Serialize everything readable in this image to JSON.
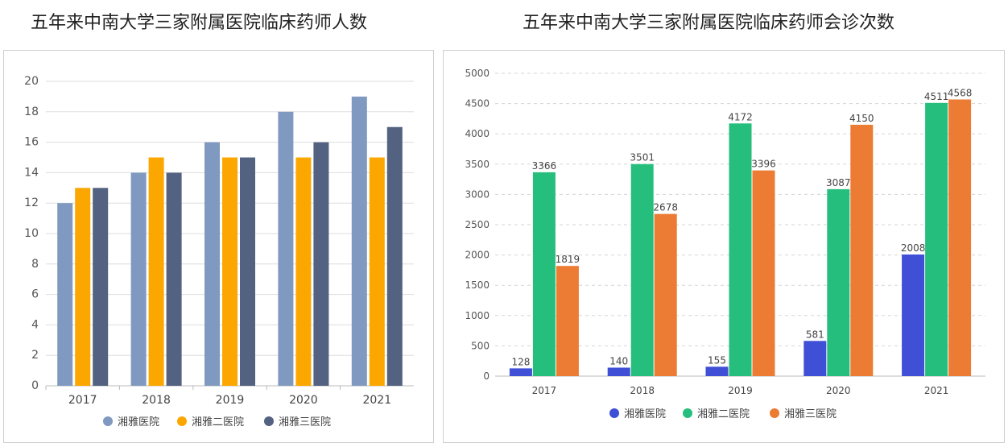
{
  "titles": {
    "left": "五年来中南大学三家附属医院临床药师人数",
    "right": "五年来中南大学三家附属医院临床药师会诊次数"
  },
  "colors": {
    "xiangya": "#7f99c0",
    "xiangya2": "#fca700",
    "xiangya3": "#536280",
    "xiangya_r": "#3f4fd6",
    "xiangya2_r": "#26be7d",
    "xiangya3_r": "#ec7b33"
  },
  "chart_data": [
    {
      "type": "bar",
      "title": "五年来中南大学三家附属医院临床药师人数",
      "categories": [
        "2017",
        "2018",
        "2019",
        "2020",
        "2021"
      ],
      "ylim": [
        0,
        20
      ],
      "yticks": [
        0,
        2,
        4,
        6,
        8,
        10,
        12,
        14,
        16,
        18,
        20
      ],
      "grid": true,
      "legend_position": "bottom",
      "series": [
        {
          "name": "湘雅医院",
          "values": [
            12,
            14,
            16,
            18,
            19
          ]
        },
        {
          "name": "湘雅二医院",
          "values": [
            13,
            15,
            15,
            15,
            15
          ]
        },
        {
          "name": "湘雅三医院",
          "values": [
            13,
            14,
            15,
            16,
            17
          ]
        }
      ]
    },
    {
      "type": "bar",
      "title": "五年来中南大学三家附属医院临床药师会诊次数",
      "categories": [
        "2017",
        "2018",
        "2019",
        "2020",
        "2021"
      ],
      "ylim": [
        0,
        5000
      ],
      "yticks": [
        0,
        500,
        1000,
        1500,
        2000,
        2500,
        3000,
        3500,
        4000,
        4500,
        5000
      ],
      "grid": true,
      "grid_style": "dashed",
      "data_labels": true,
      "legend_position": "bottom",
      "series": [
        {
          "name": "湘雅医院",
          "values": [
            128,
            140,
            155,
            581,
            2008
          ]
        },
        {
          "name": "湘雅二医院",
          "values": [
            3366,
            3501,
            4172,
            3087,
            4511
          ]
        },
        {
          "name": "湘雅三医院",
          "values": [
            1819,
            2678,
            3396,
            4150,
            4568
          ]
        }
      ]
    }
  ]
}
